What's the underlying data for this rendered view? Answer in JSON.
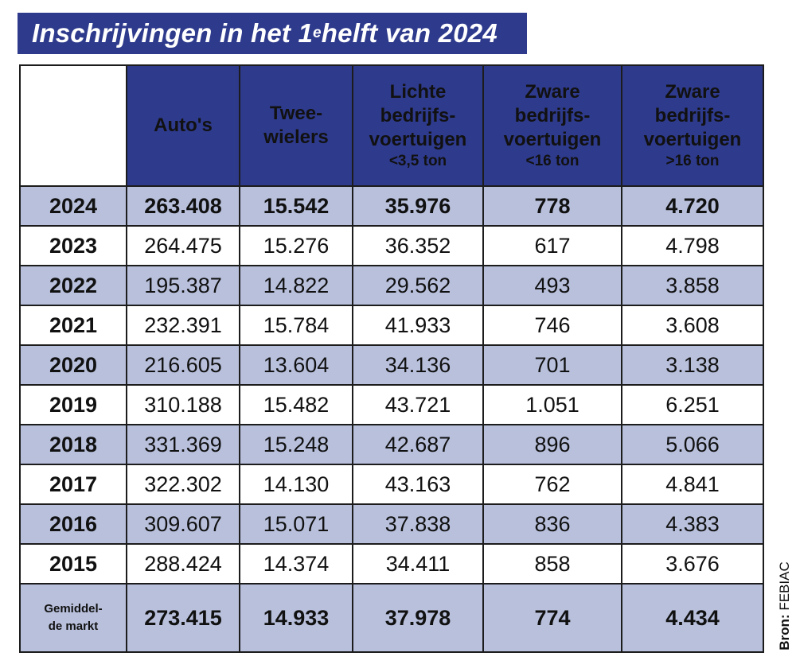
{
  "title": {
    "prefix": "Inschrijvingen in het 1",
    "superscript": "e",
    "suffix": " helft van 2024"
  },
  "source": {
    "label": "Bron:",
    "name": "FEBIAC"
  },
  "colors": {
    "header_bg": "#2e3a8c",
    "row_shade": "#b8c0dc",
    "row_plain": "#ffffff"
  },
  "chart_data": {
    "type": "table",
    "title": "Inschrijvingen in het 1e helft van 2024",
    "columns": [
      {
        "lines": [
          "Auto's"
        ],
        "sub": ""
      },
      {
        "lines": [
          "Twee-",
          "wielers"
        ],
        "sub": ""
      },
      {
        "lines": [
          "Lichte",
          "bedrijfs-",
          "voertuigen"
        ],
        "sub": "<3,5 ton"
      },
      {
        "lines": [
          "Zware",
          "bedrijfs-",
          "voertuigen"
        ],
        "sub": "<16 ton"
      },
      {
        "lines": [
          "Zware",
          "bedrijfs-",
          "voertuigen"
        ],
        "sub": ">16 ton"
      }
    ],
    "rows": [
      {
        "year": "2024",
        "values": [
          "263.408",
          "15.542",
          "35.976",
          "778",
          "4.720"
        ]
      },
      {
        "year": "2023",
        "values": [
          "264.475",
          "15.276",
          "36.352",
          "617",
          "4.798"
        ]
      },
      {
        "year": "2022",
        "values": [
          "195.387",
          "14.822",
          "29.562",
          "493",
          "3.858"
        ]
      },
      {
        "year": "2021",
        "values": [
          "232.391",
          "15.784",
          "41.933",
          "746",
          "3.608"
        ]
      },
      {
        "year": "2020",
        "values": [
          "216.605",
          "13.604",
          "34.136",
          "701",
          "3.138"
        ]
      },
      {
        "year": "2019",
        "values": [
          "310.188",
          "15.482",
          "43.721",
          "1.051",
          "6.251"
        ]
      },
      {
        "year": "2018",
        "values": [
          "331.369",
          "15.248",
          "42.687",
          "896",
          "5.066"
        ]
      },
      {
        "year": "2017",
        "values": [
          "322.302",
          "14.130",
          "43.163",
          "762",
          "4.841"
        ]
      },
      {
        "year": "2016",
        "values": [
          "309.607",
          "15.071",
          "37.838",
          "836",
          "4.383"
        ]
      },
      {
        "year": "2015",
        "values": [
          "288.424",
          "14.374",
          "34.411",
          "858",
          "3.676"
        ]
      }
    ],
    "average": {
      "label_lines": [
        "Gemiddel-",
        "de markt"
      ],
      "values": [
        "273.415",
        "14.933",
        "37.978",
        "774",
        "4.434"
      ]
    }
  }
}
